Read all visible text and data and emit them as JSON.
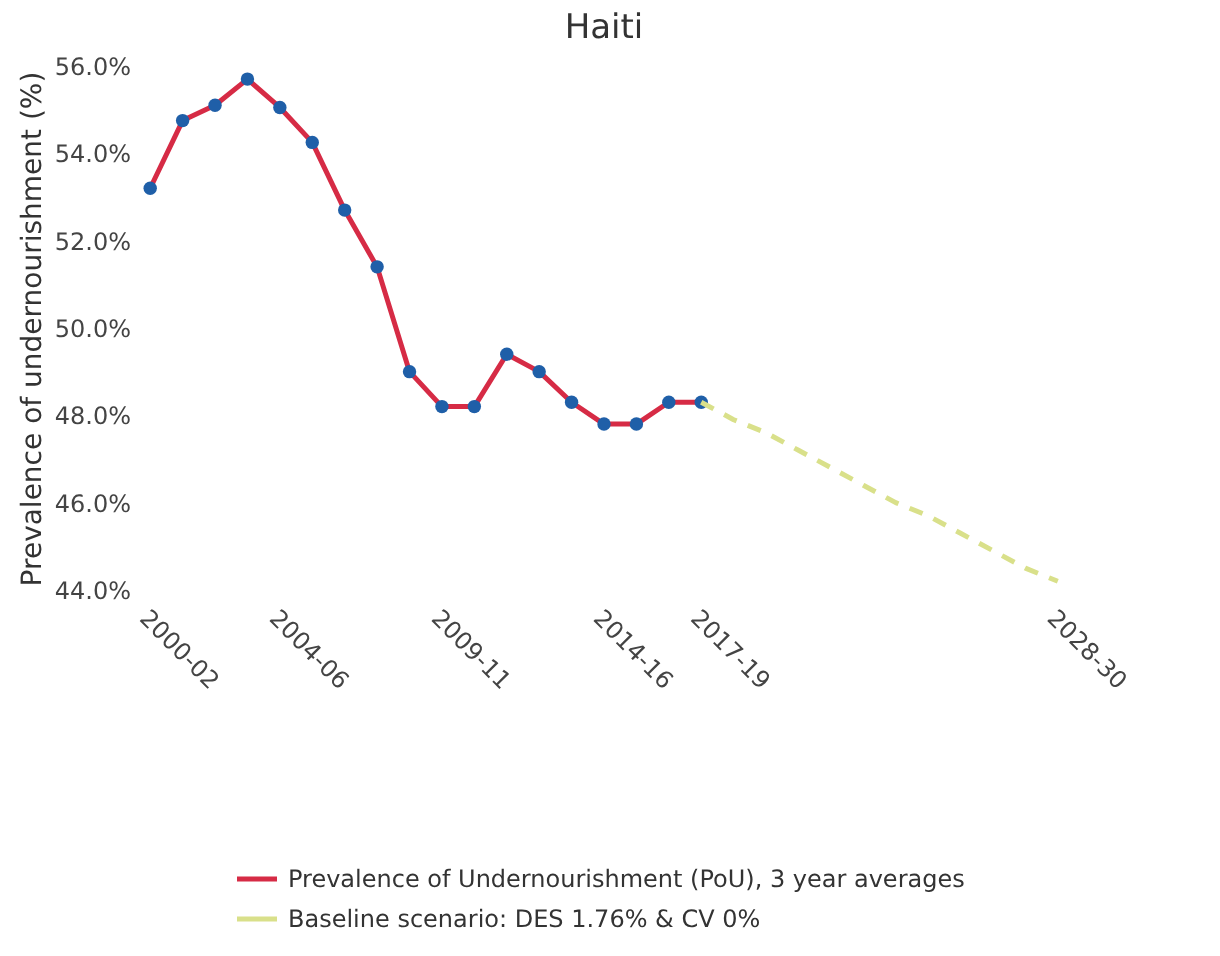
{
  "chart_data": {
    "type": "line",
    "title": "Haiti",
    "ylabel": "Prevalence of undernourishment (%)",
    "categories": [
      "2000-02",
      null,
      null,
      null,
      "2004-06",
      null,
      null,
      null,
      null,
      "2009-11",
      null,
      null,
      null,
      null,
      "2014-16",
      null,
      null,
      "2017-19",
      null,
      null,
      null,
      null,
      null,
      null,
      null,
      null,
      null,
      null,
      "2028-30"
    ],
    "series": [
      {
        "name": "Prevalence of Undernourishment (PoU), 3 year averages",
        "color": "#d62b45",
        "marker": "circle",
        "line_style": "solid",
        "values": [
          53.2,
          54.75,
          55.1,
          55.7,
          55.05,
          54.25,
          52.7,
          51.4,
          49.0,
          48.2,
          48.2,
          49.4,
          49.0,
          48.3,
          47.8,
          47.8,
          48.3,
          48.3,
          null,
          null,
          null,
          null,
          null,
          null,
          null,
          null,
          null,
          null,
          null
        ]
      },
      {
        "name": "Baseline scenario: DES 1.76% & CV 0%",
        "color": "#d9e08a",
        "marker": "none",
        "line_style": "dashed",
        "values": [
          null,
          null,
          null,
          null,
          null,
          null,
          null,
          null,
          null,
          null,
          null,
          null,
          null,
          null,
          null,
          null,
          null,
          48.3,
          47.9,
          47.6,
          47.2,
          46.8,
          46.4,
          46.0,
          45.7,
          45.3,
          44.9,
          44.5,
          44.2
        ]
      }
    ],
    "ylim": [
      44,
      56
    ],
    "yticks": [
      {
        "value": 44,
        "label": "44.0%"
      },
      {
        "value": 46,
        "label": "46.0%"
      },
      {
        "value": 48,
        "label": "48.0%"
      },
      {
        "value": 50,
        "label": "50.0%"
      },
      {
        "value": 52,
        "label": "52.0%"
      },
      {
        "value": 54,
        "label": "54.0%"
      },
      {
        "value": 56,
        "label": "56.0%"
      }
    ],
    "legend": "bottom right"
  }
}
